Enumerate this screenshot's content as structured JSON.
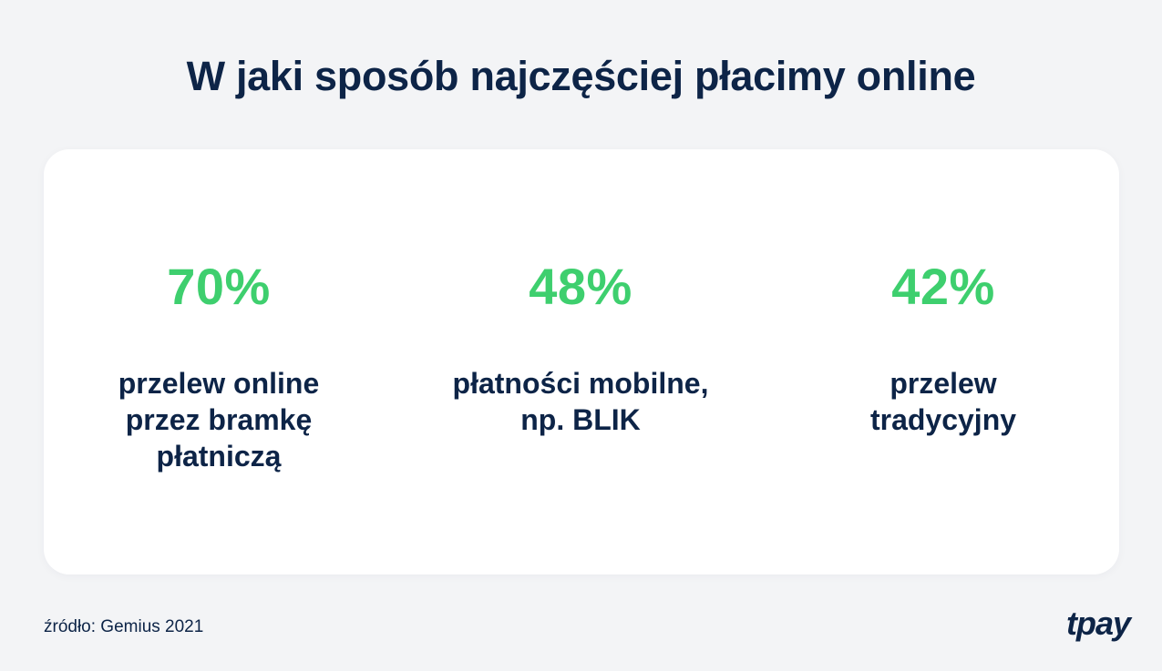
{
  "title": "W jaki sposób najczęściej płacimy online",
  "stats": [
    {
      "value": "70%",
      "label": "przelew online\nprzez bramkę\npłatniczą"
    },
    {
      "value": "48%",
      "label": "płatności mobilne,\nnp. BLIK"
    },
    {
      "value": "42%",
      "label": "przelew\ntradycyjny"
    }
  ],
  "source": "źródło: Gemius 2021",
  "logo": "tpay",
  "colors": {
    "background": "#f3f4f6",
    "card": "#ffffff",
    "text": "#0d2447",
    "accent": "#3ecf6e"
  }
}
